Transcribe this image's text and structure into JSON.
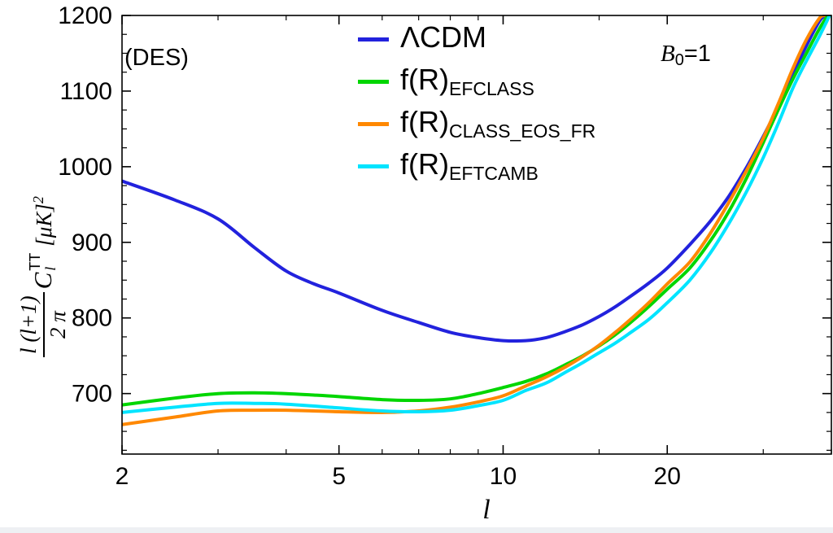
{
  "figure": {
    "background": "#ffffff",
    "frame_color": "#000000",
    "bottom_strip_color": "#eef0f3"
  },
  "annotations": {
    "des": "(DES)",
    "b0": {
      "base": "B",
      "sub": "0",
      "rest": "=1"
    }
  },
  "axis": {
    "x_label": "l",
    "y_label": {
      "frac_num": "l (l+1)",
      "frac_den": "2 π",
      "c": "C",
      "c_sub": "l",
      "c_sup": "TT",
      "units": "[μK]",
      "units_sup": "2"
    }
  },
  "chart_data": {
    "type": "line",
    "title": "",
    "xlabel": "l",
    "ylabel": "l(l+1)/(2π) C_l^TT [μK]^2",
    "x_scale": "log",
    "xlim": [
      2,
      40
    ],
    "ylim": [
      620,
      1200
    ],
    "x_ticks": [
      2,
      5,
      10,
      20
    ],
    "x_minor_ticks": [
      3,
      4,
      6,
      7,
      8,
      9,
      15,
      30,
      40
    ],
    "y_ticks": [
      700,
      800,
      900,
      1000,
      1100,
      1200
    ],
    "y_minor_step": 25,
    "grid": false,
    "legend_position": "top-center-inside",
    "series": [
      {
        "name": "LCDM",
        "label_main": "ΛCDM",
        "label_sub": "",
        "color": "#2222dd",
        "points": [
          [
            2,
            981
          ],
          [
            2.5,
            956
          ],
          [
            3,
            931
          ],
          [
            3.5,
            893
          ],
          [
            4,
            862
          ],
          [
            4.5,
            845
          ],
          [
            5,
            833
          ],
          [
            6,
            810
          ],
          [
            7,
            794
          ],
          [
            8,
            781
          ],
          [
            9,
            774
          ],
          [
            10,
            770
          ],
          [
            11,
            770
          ],
          [
            12,
            774
          ],
          [
            13,
            782
          ],
          [
            14,
            791
          ],
          [
            15,
            802
          ],
          [
            16,
            814
          ],
          [
            17,
            827
          ],
          [
            18.5,
            846
          ],
          [
            20,
            866
          ],
          [
            22,
            897
          ],
          [
            24,
            928
          ],
          [
            26,
            962
          ],
          [
            28,
            1000
          ],
          [
            30,
            1040
          ],
          [
            32,
            1080
          ],
          [
            34,
            1122
          ],
          [
            36,
            1160
          ],
          [
            38,
            1192
          ],
          [
            39,
            1200
          ]
        ]
      },
      {
        "name": "fR_EFCLASS",
        "label_main": "f(R)",
        "label_sub": "EFCLASS",
        "color": "#00d600",
        "points": [
          [
            2,
            685
          ],
          [
            2.5,
            694
          ],
          [
            3,
            700
          ],
          [
            3.5,
            701
          ],
          [
            4,
            700
          ],
          [
            4.5,
            698
          ],
          [
            5,
            696
          ],
          [
            6,
            692
          ],
          [
            7,
            691
          ],
          [
            8,
            693
          ],
          [
            9,
            700
          ],
          [
            10,
            708
          ],
          [
            11,
            716
          ],
          [
            12,
            726
          ],
          [
            13,
            738
          ],
          [
            14,
            750
          ],
          [
            15,
            763
          ],
          [
            16,
            777
          ],
          [
            17,
            792
          ],
          [
            18.5,
            815
          ],
          [
            20,
            838
          ],
          [
            22,
            866
          ],
          [
            24,
            902
          ],
          [
            26,
            942
          ],
          [
            28,
            986
          ],
          [
            30,
            1032
          ],
          [
            32,
            1076
          ],
          [
            34,
            1116
          ],
          [
            36,
            1150
          ],
          [
            38,
            1182
          ],
          [
            39.4,
            1200
          ]
        ]
      },
      {
        "name": "fR_CLASS_EOS_FR",
        "label_main": "f(R)",
        "label_sub": "CLASS_EOS_FR",
        "color": "#ff8800",
        "points": [
          [
            2,
            659
          ],
          [
            2.5,
            669
          ],
          [
            3,
            677
          ],
          [
            3.5,
            678
          ],
          [
            4,
            678
          ],
          [
            5,
            676
          ],
          [
            6,
            675
          ],
          [
            7,
            677
          ],
          [
            8,
            682
          ],
          [
            9,
            689
          ],
          [
            10,
            697
          ],
          [
            11,
            710
          ],
          [
            12,
            722
          ],
          [
            13,
            735
          ],
          [
            14,
            749
          ],
          [
            15,
            764
          ],
          [
            16,
            780
          ],
          [
            17,
            796
          ],
          [
            18.5,
            820
          ],
          [
            20,
            845
          ],
          [
            22,
            874
          ],
          [
            24,
            912
          ],
          [
            26,
            954
          ],
          [
            28,
            996
          ],
          [
            30,
            1038
          ],
          [
            32,
            1084
          ],
          [
            34,
            1130
          ],
          [
            36,
            1168
          ],
          [
            38,
            1196
          ],
          [
            38.8,
            1200
          ]
        ]
      },
      {
        "name": "fR_EFTCAMB",
        "label_main": "f(R)",
        "label_sub": "EFTCAMB",
        "color": "#00e4ff",
        "points": [
          [
            2,
            675
          ],
          [
            2.5,
            682
          ],
          [
            3,
            687
          ],
          [
            3.5,
            687
          ],
          [
            4,
            686
          ],
          [
            5,
            681
          ],
          [
            6,
            677
          ],
          [
            7,
            676
          ],
          [
            8,
            678
          ],
          [
            9,
            684
          ],
          [
            10,
            691
          ],
          [
            11,
            704
          ],
          [
            12,
            714
          ],
          [
            13,
            728
          ],
          [
            14,
            741
          ],
          [
            15,
            754
          ],
          [
            16,
            766
          ],
          [
            17,
            779
          ],
          [
            18.5,
            798
          ],
          [
            20,
            820
          ],
          [
            22,
            850
          ],
          [
            24,
            886
          ],
          [
            26,
            926
          ],
          [
            28,
            968
          ],
          [
            30,
            1012
          ],
          [
            32,
            1058
          ],
          [
            34,
            1104
          ],
          [
            36,
            1140
          ],
          [
            38,
            1172
          ],
          [
            39.7,
            1200
          ]
        ]
      }
    ]
  }
}
